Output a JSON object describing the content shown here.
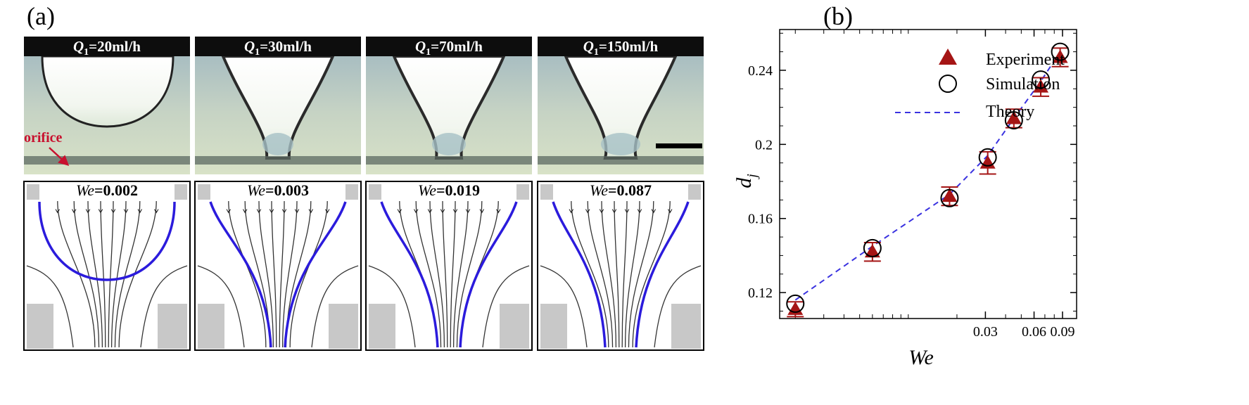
{
  "figure": {
    "panel_a_label": "(a)",
    "panel_b_label": "(b)"
  },
  "panels": [
    {
      "q_symbol": "Q",
      "q_sub": "1",
      "q_value": "=20ml/h",
      "we_symbol": "We",
      "we_value": "=0.002",
      "shape": "drop"
    },
    {
      "q_symbol": "Q",
      "q_sub": "1",
      "q_value": "=30ml/h",
      "we_symbol": "We",
      "we_value": "=0.003",
      "shape": "cone"
    },
    {
      "q_symbol": "Q",
      "q_sub": "1",
      "q_value": "=70ml/h",
      "we_symbol": "We",
      "we_value": "=0.019",
      "shape": "cone"
    },
    {
      "q_symbol": "Q",
      "q_sub": "1",
      "q_value": "=150ml/h",
      "we_symbol": "We",
      "we_value": "=0.087",
      "shape": "cone"
    }
  ],
  "annotation": {
    "orifice_label": "orifice",
    "orifice_color": "#c8102e"
  },
  "colors": {
    "interface": "#2b1bdc",
    "marker": "#a51515",
    "theory": "#3a32e0"
  },
  "chart_data": {
    "type": "scatter",
    "title": "",
    "xlabel": "We",
    "ylabel": "d",
    "ylabel_sub": "j",
    "x_scale": "log",
    "xlim": [
      0.0016,
      0.11
    ],
    "ylim": [
      0.106,
      0.262
    ],
    "x_ticks": [
      0.03,
      0.06,
      0.09
    ],
    "x_tick_labels": [
      "0.03",
      "0.06",
      "0.09"
    ],
    "y_ticks": [
      0.12,
      0.16,
      0.2,
      0.24
    ],
    "y_tick_labels": [
      "0.12",
      "0.16",
      "0.2",
      "0.24"
    ],
    "legend_position": "top-left",
    "series": [
      {
        "name": "Experiment",
        "marker": "filled-triangle",
        "x": [
          0.002,
          0.006,
          0.018,
          0.031,
          0.045,
          0.066,
          0.087
        ],
        "y": [
          0.111,
          0.142,
          0.172,
          0.19,
          0.214,
          0.231,
          0.247
        ],
        "error": [
          0.004,
          0.005,
          0.005,
          0.006,
          0.005,
          0.005,
          0.005
        ]
      },
      {
        "name": "Simulation",
        "marker": "open-circle",
        "x": [
          0.002,
          0.006,
          0.018,
          0.031,
          0.045,
          0.066,
          0.087
        ],
        "y": [
          0.114,
          0.144,
          0.171,
          0.193,
          0.213,
          0.235,
          0.25
        ]
      },
      {
        "name": "Theory",
        "marker": "dashed-line",
        "x": [
          0.002,
          0.006,
          0.018,
          0.031,
          0.045,
          0.066,
          0.087
        ],
        "y": [
          0.116,
          0.145,
          0.173,
          0.194,
          0.214,
          0.234,
          0.25
        ]
      }
    ]
  }
}
